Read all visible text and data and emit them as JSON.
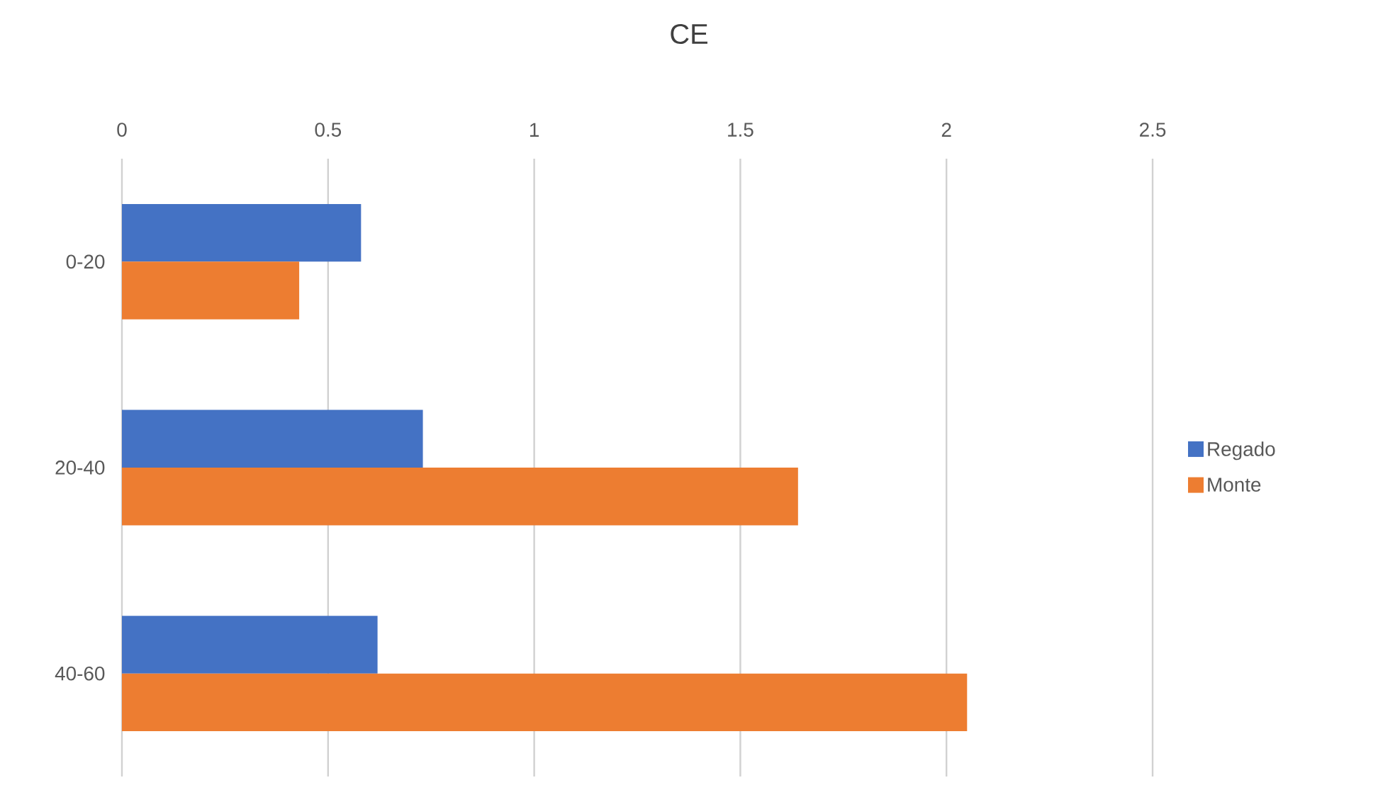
{
  "chart_data": {
    "type": "bar",
    "orientation": "horizontal",
    "title": "CE",
    "categories": [
      "0-20",
      "20-40",
      "40-60"
    ],
    "series": [
      {
        "name": "Regado",
        "color": "#4472c4",
        "values": [
          0.58,
          0.73,
          0.62
        ]
      },
      {
        "name": "Monte",
        "color": "#ed7d31",
        "values": [
          0.43,
          1.64,
          2.05
        ]
      }
    ],
    "xlim": [
      0,
      2.5
    ],
    "xticks": [
      0,
      0.5,
      1,
      1.5,
      2,
      2.5
    ],
    "grid": "x",
    "legend": "right"
  }
}
